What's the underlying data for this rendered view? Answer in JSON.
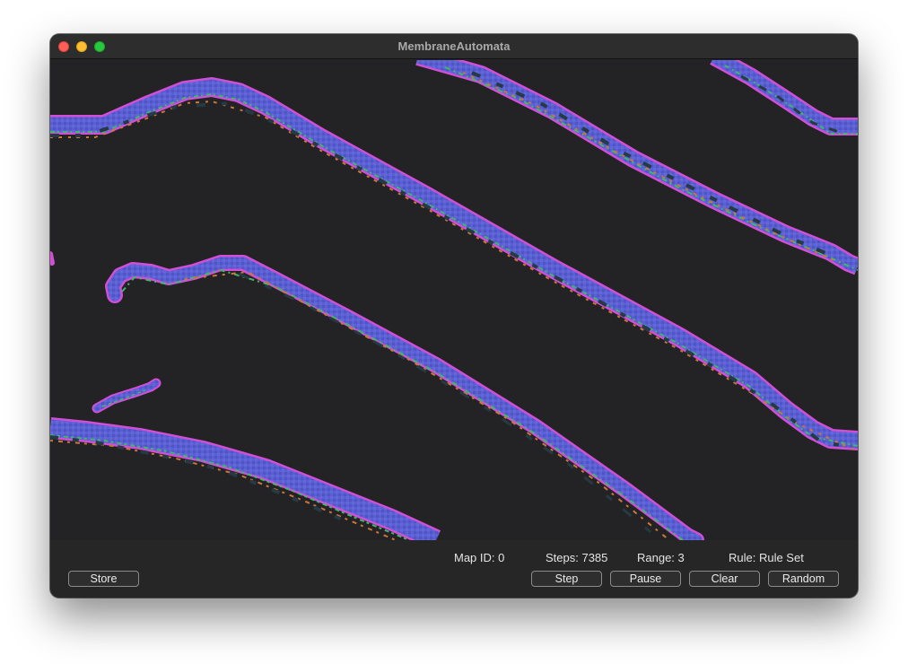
{
  "window": {
    "title": "MembraneAutomata"
  },
  "status": {
    "map_id": "Map ID: 0",
    "steps": "Steps: 7385",
    "range": "Range: 3",
    "rule": "Rule: Rule Set"
  },
  "buttons": {
    "store": "Store",
    "step": "Step",
    "pause": "Pause",
    "clear": "Clear",
    "random": "Random"
  },
  "colors": {
    "window_background": "#262626",
    "canvas_background": "#232224",
    "membrane_outline": "#d14fd6",
    "membrane_fill": "#5a5fd2",
    "membrane_inner_green": "#3fb86a",
    "membrane_inner_orange": "#c9773a",
    "membrane_inner_dark": "#263a44"
  },
  "icons": [
    "close-icon",
    "minimize-icon",
    "zoom-icon"
  ]
}
